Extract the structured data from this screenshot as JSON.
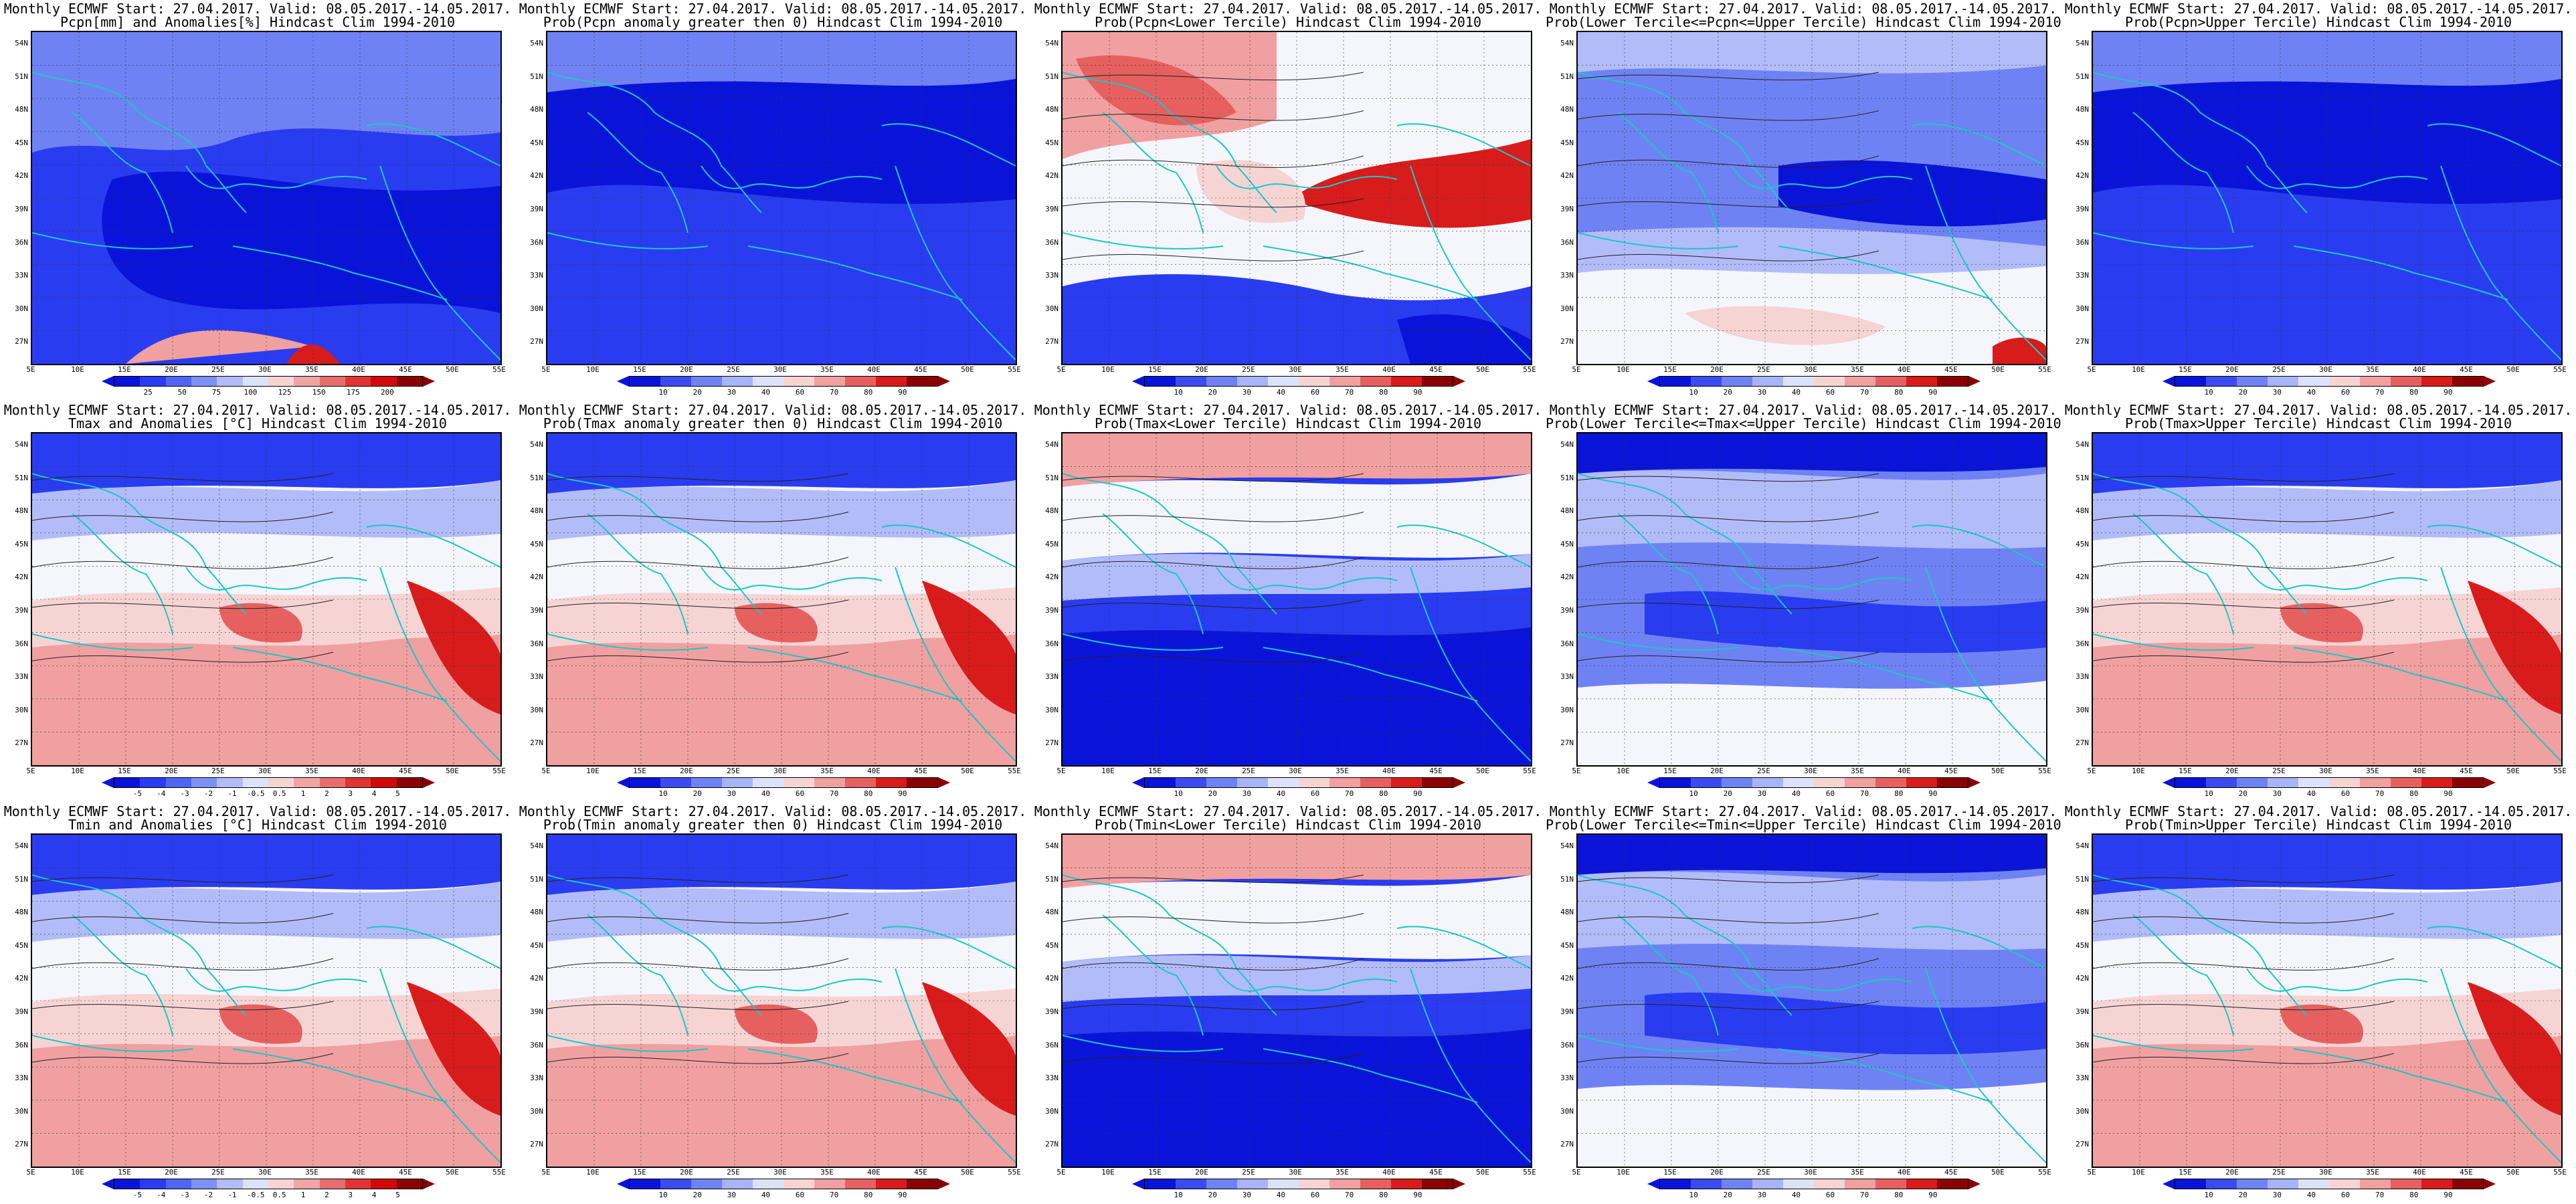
{
  "title_line1": "Monthly ECMWF Start: 27.04.2017. Valid: 08.05.2017.-14.05.2017.",
  "lat_labels": [
    "54N",
    "51N",
    "48N",
    "45N",
    "42N",
    "39N",
    "36N",
    "33N",
    "30N",
    "27N"
  ],
  "lon_labels": [
    "5E",
    "10E",
    "15E",
    "20E",
    "25E",
    "30E",
    "35E",
    "40E",
    "45E",
    "50E",
    "55E"
  ],
  "colorscales": {
    "precip_anom": {
      "colors": [
        "#0a14d8",
        "#2a3cf0",
        "#4f66f2",
        "#7f90f5",
        "#b2bcf8",
        "#dde2fb",
        "#f6d4d4",
        "#f0a5a5",
        "#e86e6e",
        "#e03434",
        "#d00a0a",
        "#8a0000"
      ],
      "labels": [
        "25",
        "50",
        "75",
        "100",
        "125",
        "150",
        "175",
        "200"
      ]
    },
    "prob": {
      "colors": [
        "#0a14d8",
        "#3a4cf0",
        "#6f82f4",
        "#a8b4f8",
        "#dde2fb",
        "#f6d4d4",
        "#f0a0a0",
        "#e66060",
        "#d81c1c",
        "#8a0000"
      ],
      "labels": [
        "10",
        "20",
        "30",
        "40",
        "60",
        "70",
        "80",
        "90"
      ]
    },
    "temp_anom": {
      "colors": [
        "#0a14d8",
        "#2a3cf0",
        "#4f66f2",
        "#7f90f5",
        "#b2bcf8",
        "#dde2fb",
        "#f6d4d4",
        "#f0a5a5",
        "#e86e6e",
        "#e03434",
        "#d00a0a",
        "#8a0000"
      ],
      "labels": [
        "-5",
        "-4",
        "-3",
        "-2",
        "-1",
        "-0.5",
        "0.5",
        "1",
        "2",
        "3",
        "4",
        "5"
      ]
    }
  },
  "panels": [
    {
      "id": "pcpn-anom",
      "line2": "Pcpn[mm] and Anomalies[%] Hindcast Clim 1994-2010",
      "scale": "precip_anom",
      "style": "pcpn-anom"
    },
    {
      "id": "pcpn-prob-gt0",
      "line2": "Prob(Pcpn anomaly greater then 0) Hindcast Clim 1994-2010",
      "scale": "prob",
      "style": "blue"
    },
    {
      "id": "pcpn-prob-lower",
      "line2": "Prob(Pcpn<Lower Tercile) Hindcast Clim 1994-2010",
      "scale": "prob",
      "style": "pcpn-lower"
    },
    {
      "id": "pcpn-prob-middle",
      "line2": "Prob(Lower Tercile<=Pcpn<=Upper Tercile) Hindcast Clim 1994-2010",
      "scale": "prob",
      "style": "pcpn-middle"
    },
    {
      "id": "pcpn-prob-upper",
      "line2": "Prob(Pcpn>Upper Tercile) Hindcast Clim 1994-2010",
      "scale": "prob",
      "style": "blue"
    },
    {
      "id": "tmax-anom",
      "line2": "Tmax and Anomalies [°C] Hindcast Clim 1994-2010",
      "scale": "temp_anom",
      "style": "warm-north-blue"
    },
    {
      "id": "tmax-prob-gt0",
      "line2": "Prob(Tmax anomaly greater then 0) Hindcast Clim 1994-2010",
      "scale": "prob",
      "style": "warm-north-blue"
    },
    {
      "id": "tmax-prob-lower",
      "line2": "Prob(Tmax<Lower Tercile) Hindcast Clim 1994-2010",
      "scale": "prob",
      "style": "cold-north-red"
    },
    {
      "id": "tmax-prob-middle",
      "line2": "Prob(Lower Tercile<=Tmax<=Upper Tercile) Hindcast Clim 1994-2010",
      "scale": "prob",
      "style": "mixed-blue"
    },
    {
      "id": "tmax-prob-upper",
      "line2": "Prob(Tmax>Upper Tercile) Hindcast Clim 1994-2010",
      "scale": "prob",
      "style": "warm-north-blue"
    },
    {
      "id": "tmin-anom",
      "line2": "Tmin and Anomalies [°C] Hindcast Clim 1994-2010",
      "scale": "temp_anom",
      "style": "warm-north-blue"
    },
    {
      "id": "tmin-prob-gt0",
      "line2": "Prob(Tmin anomaly greater then 0) Hindcast Clim 1994-2010",
      "scale": "prob",
      "style": "warm-north-blue"
    },
    {
      "id": "tmin-prob-lower",
      "line2": "Prob(Tmin<Lower Tercile) Hindcast Clim 1994-2010",
      "scale": "prob",
      "style": "cold-north-red"
    },
    {
      "id": "tmin-prob-middle",
      "line2": "Prob(Lower Tercile<=Tmin<=Upper Tercile) Hindcast Clim 1994-2010",
      "scale": "prob",
      "style": "mixed-blue"
    },
    {
      "id": "tmin-prob-upper",
      "line2": "Prob(Tmin>Upper Tercile) Hindcast Clim 1994-2010",
      "scale": "prob",
      "style": "warm-north-blue"
    }
  ]
}
